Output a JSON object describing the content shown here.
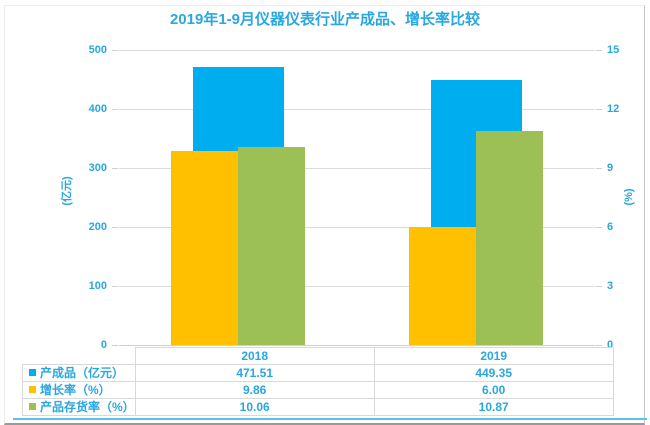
{
  "title": "2019年1-9月仪器仪表行业产成品、增长率比较",
  "accent_text_color": "#29a7df",
  "grid_color": "#dcdcdc",
  "table_border_color": "#d9d9d9",
  "bottom_rule_color": "#58c2ea",
  "chart_data": {
    "type": "bar",
    "title": "2019年1-9月仪器仪表行业产成品、增长率比较",
    "categories": [
      "2018",
      "2019"
    ],
    "series": [
      {
        "name": "产成品（亿元）",
        "axis": "left",
        "color": "#00aeef",
        "values": [
          471.51,
          449.35
        ]
      },
      {
        "name": "增长率（%）",
        "axis": "right",
        "color": "#ffc000",
        "values": [
          9.86,
          6.0
        ]
      },
      {
        "name": "产品存货率（%）",
        "axis": "right",
        "color": "#9cbf56",
        "values": [
          10.06,
          10.87
        ]
      }
    ],
    "left_axis": {
      "title": "(亿元)",
      "min": 0,
      "max": 500,
      "ticks": [
        0,
        100,
        200,
        300,
        400,
        500
      ]
    },
    "right_axis": {
      "title": "(%)",
      "min": 0,
      "max": 15,
      "ticks": [
        0,
        3,
        6,
        9,
        12,
        15
      ]
    },
    "grid": true,
    "legend_position": "table-left",
    "value_decimals": 2
  }
}
